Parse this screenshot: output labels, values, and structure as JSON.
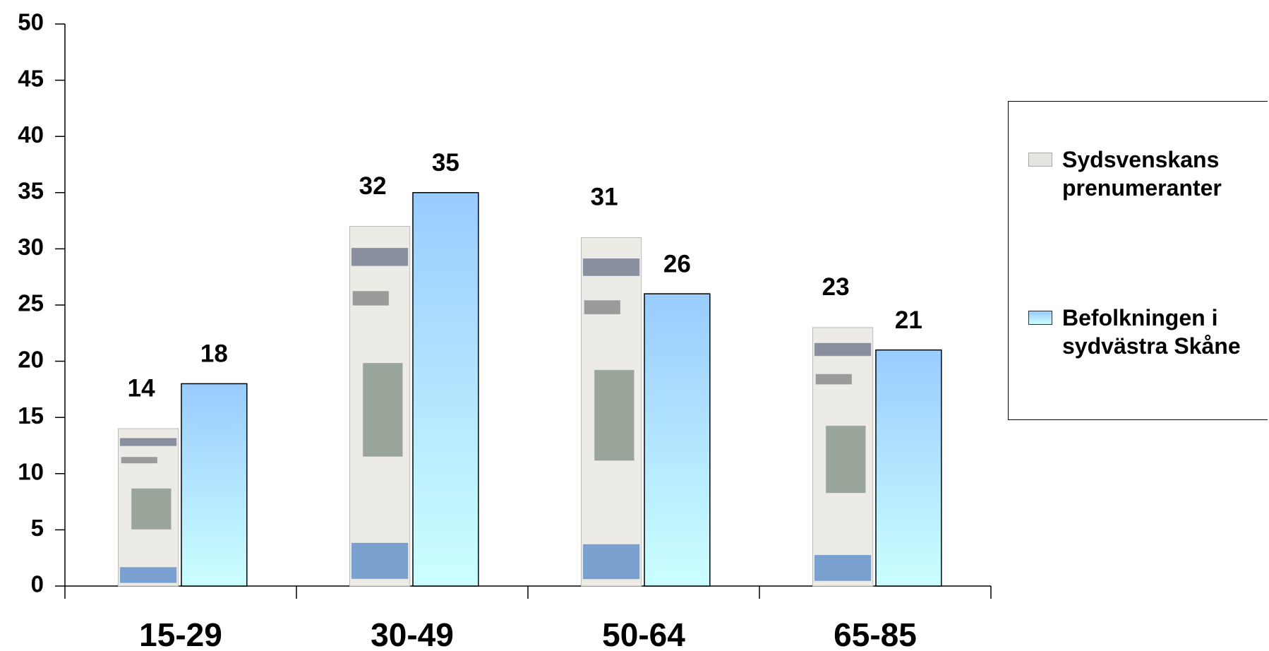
{
  "chart_data": {
    "type": "bar",
    "categories": [
      "15-29",
      "30-49",
      "50-64",
      "65-85"
    ],
    "series": [
      {
        "name": "Sydsvenskans prenumeranter",
        "color": "#e4e4e0",
        "values": [
          14,
          32,
          31,
          23
        ]
      },
      {
        "name": "Befolkningen i sydvästra Skåne",
        "color": "#99ccff",
        "values": [
          18,
          35,
          26,
          21
        ]
      }
    ],
    "ylim": [
      0,
      50
    ],
    "yticks": [
      0,
      5,
      10,
      15,
      20,
      25,
      30,
      35,
      40,
      45,
      50
    ],
    "legend": "right"
  }
}
